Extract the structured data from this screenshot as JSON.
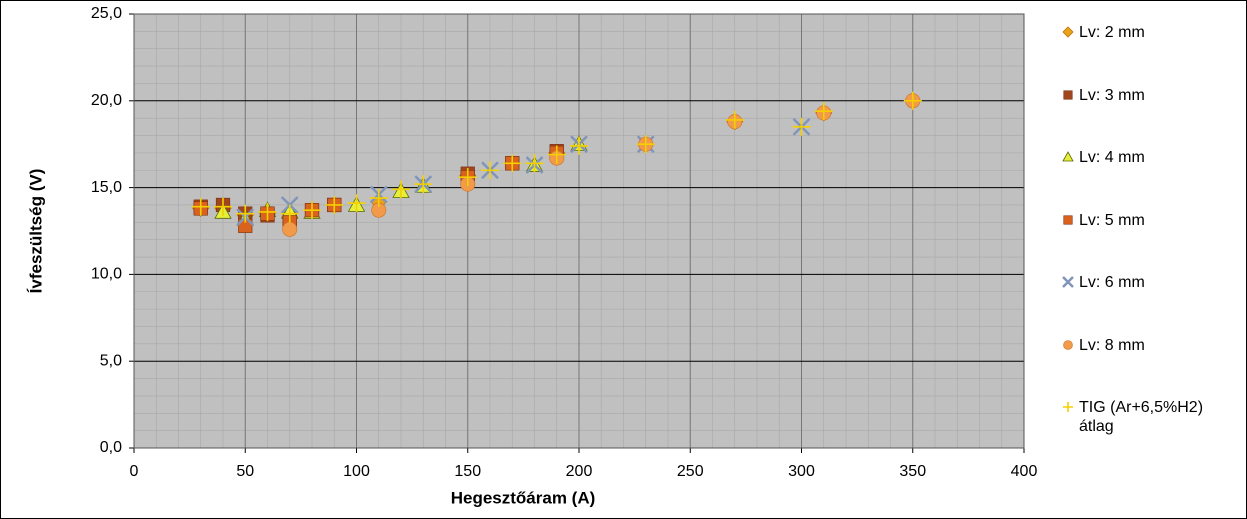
{
  "chart_data": {
    "type": "scatter",
    "xlabel": "Hegesztőáram (A)",
    "ylabel": "Ívfeszültség (V)",
    "xlim": [
      0,
      400
    ],
    "xticks": [
      0,
      50,
      100,
      150,
      200,
      250,
      300,
      350,
      400
    ],
    "ylim": [
      0,
      25
    ],
    "yticks": [
      {
        "value": 0,
        "label": "0,0"
      },
      {
        "value": 5,
        "label": "5,0"
      },
      {
        "value": 10,
        "label": "10,0"
      },
      {
        "value": 15,
        "label": "15,0"
      },
      {
        "value": 20,
        "label": "20,0"
      },
      {
        "value": 25,
        "label": "25,0"
      }
    ],
    "grid": true,
    "series": [
      {
        "name": "Lv: 2 mm",
        "marker": "diamond",
        "color": "#e8a21c",
        "x": [
          30,
          40,
          50,
          60,
          70,
          80,
          90,
          110,
          150,
          170,
          190,
          230,
          270,
          310,
          350
        ],
        "values": [
          13.8,
          13.8,
          13.4,
          13.5,
          13.3,
          13.7,
          14.0,
          14.2,
          15.7,
          16.4,
          17.0,
          17.5,
          18.8,
          19.3,
          20.0
        ]
      },
      {
        "name": "Lv: 3 mm",
        "marker": "square",
        "color": "#a0461e",
        "x": [
          30,
          40,
          50,
          60,
          70,
          80,
          90,
          150,
          170,
          190
        ],
        "values": [
          13.9,
          14.0,
          13.5,
          13.4,
          13.2,
          13.7,
          14.0,
          15.8,
          16.4,
          17.1
        ]
      },
      {
        "name": "Lv: 4 mm",
        "marker": "triangle",
        "color": "#e6f03c",
        "x": [
          40,
          50,
          60,
          70,
          80,
          100,
          120,
          130,
          180,
          200
        ],
        "values": [
          13.6,
          13.2,
          13.7,
          13.6,
          13.6,
          14.0,
          14.8,
          15.1,
          16.3,
          17.5
        ]
      },
      {
        "name": "Lv: 5 mm",
        "marker": "square",
        "color": "#d9621e",
        "x": [
          30,
          50,
          60,
          70,
          80,
          90,
          150,
          170,
          190
        ],
        "values": [
          13.8,
          12.8,
          13.5,
          13.0,
          13.7,
          14.0,
          15.6,
          16.4,
          17.0
        ]
      },
      {
        "name": "Lv: 6 mm",
        "marker": "x",
        "color": "#8095b8",
        "x": [
          50,
          70,
          110,
          130,
          160,
          180,
          200,
          230,
          300
        ],
        "values": [
          13.3,
          14.0,
          14.6,
          15.2,
          16.0,
          16.3,
          17.5,
          17.5,
          18.5
        ]
      },
      {
        "name": "Lv: 8 mm",
        "marker": "circle",
        "color": "#f09a4a",
        "x": [
          70,
          110,
          150,
          190,
          230,
          270,
          310,
          350
        ],
        "values": [
          12.6,
          13.7,
          15.2,
          16.7,
          17.5,
          18.8,
          19.3,
          20.0
        ]
      },
      {
        "name": "TIG (Ar+6,5%H2) átlag",
        "marker": "plus",
        "color": "#f5d000",
        "x": [
          30,
          40,
          50,
          60,
          70,
          80,
          90,
          100,
          110,
          120,
          130,
          150,
          160,
          170,
          180,
          190,
          200,
          230,
          270,
          300,
          310,
          350
        ],
        "values": [
          13.9,
          13.9,
          13.5,
          13.6,
          13.5,
          13.7,
          14.0,
          14.1,
          14.4,
          14.9,
          15.2,
          15.6,
          16.0,
          16.4,
          16.4,
          16.9,
          17.4,
          17.5,
          18.9,
          18.5,
          19.4,
          20.0
        ]
      }
    ]
  }
}
